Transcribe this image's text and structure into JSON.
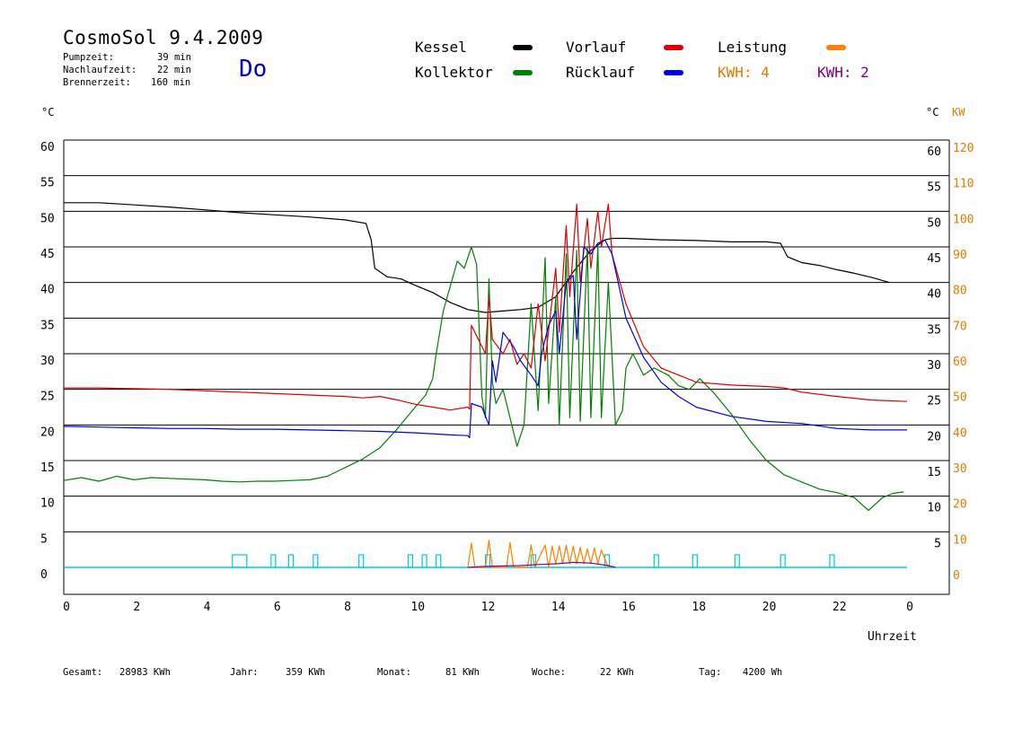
{
  "header": {
    "title": "CosmoSol 9.4.2009",
    "pump_label": "Pumpzeit:",
    "pump_value": "39 min",
    "after_label": "Nachlaufzeit:",
    "after_value": "22 min",
    "burner_label": "Brennerzeit:",
    "burner_value": "160 min",
    "day": "Do",
    "day_color": "#0000cc"
  },
  "legend": [
    {
      "name": "Kessel",
      "color": "#000000"
    },
    {
      "name": "Kollektor",
      "color": "#008000"
    },
    {
      "name": "Vorlauf",
      "color": "#dd0000"
    },
    {
      "name": "Rücklauf",
      "color": "#0000dd"
    },
    {
      "name": "Leistung",
      "color": "#ff8000"
    }
  ],
  "kwh": [
    {
      "text": "KWH: 4",
      "color": "#e07b00"
    },
    {
      "text": "KWH: 2",
      "color": "#800080"
    }
  ],
  "units": {
    "left": "°C",
    "right_temp": "°C",
    "right_kw": "KW"
  },
  "xlabel": "Uhrzeit",
  "footer": [
    {
      "label": "Gesamt:",
      "value": "28983 KWh"
    },
    {
      "label": "Jahr:",
      "value": "359 KWh"
    },
    {
      "label": "Monat:",
      "value": "81 KWh"
    },
    {
      "label": "Woche:",
      "value": "22 KWh"
    },
    {
      "label": "Tag:",
      "value": "4200 Wh"
    }
  ],
  "chart_data": {
    "type": "line",
    "title": "CosmoSol 9.4.2009",
    "xlabel": "Uhrzeit",
    "ylabel": "°C",
    "y2label": "KW",
    "xlim": [
      0,
      24
    ],
    "ylim": [
      0,
      60
    ],
    "y2lim": [
      0,
      120
    ],
    "x_ticks": [
      "0",
      "2",
      "4",
      "6",
      "8",
      "10",
      "12",
      "14",
      "16",
      "18",
      "20",
      "22",
      "0"
    ],
    "y_ticks": [
      0,
      5,
      10,
      15,
      20,
      25,
      30,
      35,
      40,
      45,
      50,
      55,
      60
    ],
    "y_ticks_right": [
      "",
      "5",
      "10",
      "15",
      "20",
      "25",
      "30",
      "35",
      "40",
      "45",
      "50",
      "55",
      "60"
    ],
    "y2_ticks": [
      0,
      10,
      20,
      30,
      40,
      50,
      60,
      70,
      80,
      90,
      100,
      110,
      120
    ],
    "grid": "horizontal",
    "baseline_color": "#00cccc",
    "series": [
      {
        "name": "Kessel",
        "color": "#000000",
        "points": [
          [
            0,
            51.2
          ],
          [
            1,
            51.2
          ],
          [
            2,
            50.9
          ],
          [
            3,
            50.6
          ],
          [
            4,
            50.2
          ],
          [
            5,
            49.8
          ],
          [
            6,
            49.5
          ],
          [
            7,
            49.2
          ],
          [
            8,
            48.8
          ],
          [
            8.6,
            48.3
          ],
          [
            8.75,
            46
          ],
          [
            8.85,
            42
          ],
          [
            9.2,
            40.8
          ],
          [
            9.6,
            40.5
          ],
          [
            10,
            39.6
          ],
          [
            10.5,
            38.6
          ],
          [
            11,
            37.2
          ],
          [
            11.5,
            36.2
          ],
          [
            12,
            35.8
          ],
          [
            12.5,
            36
          ],
          [
            13,
            36.2
          ],
          [
            13.5,
            36.5
          ],
          [
            14,
            38
          ],
          [
            14.5,
            41.5
          ],
          [
            15,
            44.5
          ],
          [
            15.4,
            46
          ],
          [
            15.6,
            46.2
          ],
          [
            16,
            46.2
          ],
          [
            17,
            46
          ],
          [
            18,
            45.9
          ],
          [
            19,
            45.7
          ],
          [
            20,
            45.7
          ],
          [
            20.4,
            45.5
          ],
          [
            20.6,
            43.6
          ],
          [
            21,
            42.8
          ],
          [
            21.5,
            42.4
          ],
          [
            22,
            41.8
          ],
          [
            22.5,
            41.3
          ],
          [
            23,
            40.7
          ],
          [
            23.5,
            40
          ]
        ]
      },
      {
        "name": "Kollektor",
        "color": "#008000",
        "points": [
          [
            0,
            12.2
          ],
          [
            0.5,
            12.6
          ],
          [
            1,
            12.1
          ],
          [
            1.5,
            12.8
          ],
          [
            2,
            12.3
          ],
          [
            2.5,
            12.6
          ],
          [
            3,
            12.5
          ],
          [
            3.5,
            12.4
          ],
          [
            4,
            12.3
          ],
          [
            4.5,
            12.1
          ],
          [
            5,
            12
          ],
          [
            5.5,
            12.1
          ],
          [
            6,
            12.1
          ],
          [
            6.5,
            12.2
          ],
          [
            7,
            12.3
          ],
          [
            7.5,
            12.8
          ],
          [
            8,
            14
          ],
          [
            8.5,
            15.2
          ],
          [
            9,
            16.8
          ],
          [
            9.5,
            19.5
          ],
          [
            10,
            22.5
          ],
          [
            10.3,
            24.2
          ],
          [
            10.5,
            26.5
          ],
          [
            10.6,
            30
          ],
          [
            10.8,
            36
          ],
          [
            11,
            39.5
          ],
          [
            11.2,
            43
          ],
          [
            11.4,
            42
          ],
          [
            11.6,
            45
          ],
          [
            11.75,
            42.5
          ],
          [
            11.9,
            24
          ],
          [
            12,
            21
          ],
          [
            12.1,
            40.5
          ],
          [
            12.2,
            26
          ],
          [
            12.3,
            23
          ],
          [
            12.5,
            25
          ],
          [
            12.7,
            21
          ],
          [
            12.9,
            17
          ],
          [
            13.1,
            20
          ],
          [
            13.3,
            37
          ],
          [
            13.5,
            22
          ],
          [
            13.7,
            43.5
          ],
          [
            13.8,
            23
          ],
          [
            14,
            38
          ],
          [
            14.1,
            20
          ],
          [
            14.3,
            44
          ],
          [
            14.4,
            21
          ],
          [
            14.6,
            44.5
          ],
          [
            14.7,
            20.5
          ],
          [
            14.9,
            45
          ],
          [
            15,
            21
          ],
          [
            15.2,
            45
          ],
          [
            15.3,
            21
          ],
          [
            15.5,
            40
          ],
          [
            15.7,
            20
          ],
          [
            15.9,
            22
          ],
          [
            16,
            28
          ],
          [
            16.2,
            30
          ],
          [
            16.5,
            27
          ],
          [
            16.8,
            28
          ],
          [
            17.2,
            27
          ],
          [
            17.5,
            25.5
          ],
          [
            17.8,
            25
          ],
          [
            18.1,
            26.5
          ],
          [
            18.5,
            24.5
          ],
          [
            19,
            21.5
          ],
          [
            19.5,
            18
          ],
          [
            20,
            15
          ],
          [
            20.5,
            13
          ],
          [
            21,
            12
          ],
          [
            21.5,
            11
          ],
          [
            22,
            10.5
          ],
          [
            22.5,
            9.8
          ],
          [
            22.9,
            8
          ],
          [
            23.3,
            9.8
          ],
          [
            23.6,
            10.4
          ],
          [
            23.9,
            10.6
          ]
        ]
      },
      {
        "name": "Vorlauf",
        "color": "#dd0000",
        "points": [
          [
            0,
            25.2
          ],
          [
            1,
            25.2
          ],
          [
            2,
            25.1
          ],
          [
            3,
            25
          ],
          [
            4,
            24.8
          ],
          [
            5,
            24.6
          ],
          [
            6,
            24.4
          ],
          [
            7,
            24.2
          ],
          [
            8,
            24
          ],
          [
            8.5,
            23.8
          ],
          [
            9,
            24
          ],
          [
            9.5,
            23.5
          ],
          [
            10,
            22.9
          ],
          [
            10.5,
            22.5
          ],
          [
            11,
            22.1
          ],
          [
            11.5,
            22.5
          ],
          [
            11.55,
            22.2
          ],
          [
            11.6,
            34
          ],
          [
            11.8,
            32
          ],
          [
            12,
            30
          ],
          [
            12.1,
            38
          ],
          [
            12.2,
            32
          ],
          [
            12.5,
            30
          ],
          [
            12.7,
            32
          ],
          [
            12.9,
            28.5
          ],
          [
            13.1,
            30
          ],
          [
            13.3,
            28
          ],
          [
            13.5,
            37
          ],
          [
            13.7,
            29
          ],
          [
            14,
            42
          ],
          [
            14.1,
            33
          ],
          [
            14.3,
            48
          ],
          [
            14.4,
            38
          ],
          [
            14.6,
            51
          ],
          [
            14.7,
            40
          ],
          [
            14.9,
            49
          ],
          [
            15,
            42
          ],
          [
            15.2,
            50
          ],
          [
            15.3,
            45
          ],
          [
            15.5,
            51
          ],
          [
            15.6,
            44
          ],
          [
            16,
            37
          ],
          [
            16.5,
            31
          ],
          [
            17,
            28
          ],
          [
            17.5,
            27
          ],
          [
            18,
            26
          ],
          [
            19,
            25.6
          ],
          [
            20,
            25.4
          ],
          [
            20.5,
            25.2
          ],
          [
            21,
            24.6
          ],
          [
            22,
            24
          ],
          [
            23,
            23.5
          ],
          [
            24,
            23.3
          ]
        ]
      },
      {
        "name": "Rücklauf",
        "color": "#0000dd",
        "points": [
          [
            0,
            19.8
          ],
          [
            1,
            19.7
          ],
          [
            2,
            19.6
          ],
          [
            3,
            19.5
          ],
          [
            4,
            19.5
          ],
          [
            5,
            19.4
          ],
          [
            6,
            19.4
          ],
          [
            7,
            19.3
          ],
          [
            8,
            19.2
          ],
          [
            9,
            19.1
          ],
          [
            10,
            18.9
          ],
          [
            11,
            18.6
          ],
          [
            11.5,
            18.5
          ],
          [
            11.55,
            18.2
          ],
          [
            11.6,
            23
          ],
          [
            11.9,
            22.5
          ],
          [
            12.1,
            20
          ],
          [
            12.2,
            29
          ],
          [
            12.3,
            26
          ],
          [
            12.5,
            33
          ],
          [
            12.8,
            31
          ],
          [
            13,
            29
          ],
          [
            13.3,
            27
          ],
          [
            13.5,
            25.5
          ],
          [
            13.6,
            30
          ],
          [
            13.8,
            34
          ],
          [
            14,
            36
          ],
          [
            14.1,
            30
          ],
          [
            14.3,
            40
          ],
          [
            14.5,
            41
          ],
          [
            14.6,
            32
          ],
          [
            14.8,
            45
          ],
          [
            15,
            44
          ],
          [
            15.2,
            45.5
          ],
          [
            15.4,
            46
          ],
          [
            15.6,
            44
          ],
          [
            16,
            35
          ],
          [
            16.5,
            29.5
          ],
          [
            17,
            26
          ],
          [
            17.5,
            24
          ],
          [
            18,
            22.5
          ],
          [
            19,
            21.2
          ],
          [
            20,
            20.5
          ],
          [
            21,
            20.2
          ],
          [
            22,
            19.5
          ],
          [
            23,
            19.3
          ],
          [
            24,
            19.3
          ]
        ]
      },
      {
        "name": "Leistung",
        "color": "#ff8000",
        "axis": "right",
        "points": [
          [
            11.5,
            0
          ],
          [
            11.6,
            6.8
          ],
          [
            11.7,
            0
          ],
          [
            12,
            0
          ],
          [
            12.1,
            7.6
          ],
          [
            12.2,
            0
          ],
          [
            12.6,
            0
          ],
          [
            12.7,
            7
          ],
          [
            12.8,
            0
          ],
          [
            13.2,
            0
          ],
          [
            13.3,
            6.3
          ],
          [
            13.4,
            0
          ],
          [
            13.7,
            6.3
          ],
          [
            13.8,
            0
          ],
          [
            13.9,
            6
          ],
          [
            14,
            1
          ],
          [
            14.1,
            6.1
          ],
          [
            14.2,
            1
          ],
          [
            14.3,
            6.2
          ],
          [
            14.4,
            1
          ],
          [
            14.5,
            6
          ],
          [
            14.6,
            1
          ],
          [
            14.7,
            5.6
          ],
          [
            14.8,
            1
          ],
          [
            14.9,
            5.2
          ],
          [
            15,
            1
          ],
          [
            15.1,
            5.5
          ],
          [
            15.2,
            1
          ],
          [
            15.3,
            4.9
          ],
          [
            15.5,
            0
          ]
        ]
      },
      {
        "name": "KWH",
        "color": "#800080",
        "axis": "right",
        "points": [
          [
            11.5,
            0
          ],
          [
            12,
            0.3
          ],
          [
            12.5,
            0.4
          ],
          [
            13,
            0.5
          ],
          [
            13.5,
            0.8
          ],
          [
            14,
            1
          ],
          [
            14.5,
            1.4
          ],
          [
            15,
            1.2
          ],
          [
            15.5,
            0.5
          ],
          [
            15.7,
            0
          ]
        ]
      }
    ],
    "pump_markers": [
      4.8,
      5.9,
      6.4,
      7.1,
      8.4,
      9.8,
      10.2,
      10.6,
      12,
      13.3,
      15.4,
      16.8,
      17.9,
      19.1,
      20.4,
      21.8
    ]
  }
}
